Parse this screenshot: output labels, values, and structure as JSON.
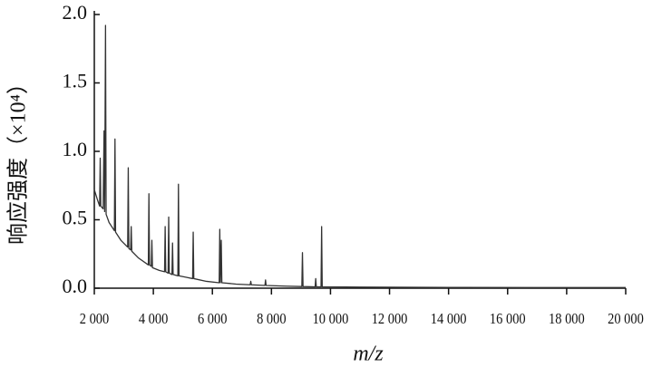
{
  "chart_data": {
    "type": "line",
    "xlabel": "m/z",
    "ylabel": "响应强度（×10⁴）",
    "color": "#333333",
    "x": [
      2000,
      2100,
      2180,
      2200,
      2220,
      2300,
      2330,
      2350,
      2380,
      2400,
      2500,
      2680,
      2700,
      2720,
      2900,
      3130,
      3150,
      3170,
      3230,
      3250,
      3270,
      3500,
      3830,
      3850,
      3870,
      3930,
      3950,
      3970,
      4200,
      4380,
      4400,
      4420,
      4500,
      4520,
      4540,
      4630,
      4650,
      4670,
      4830,
      4850,
      4870,
      5100,
      5330,
      5350,
      5370,
      5800,
      6230,
      6250,
      6270,
      6300,
      6320,
      6800,
      7280,
      7300,
      7320,
      7780,
      7800,
      7820,
      8500,
      9030,
      9050,
      9070,
      9480,
      9500,
      9520,
      9680,
      9700,
      9720,
      11000,
      14000,
      17000,
      20000
    ],
    "values": [
      0.72,
      0.65,
      0.6,
      0.95,
      0.6,
      0.58,
      1.15,
      0.56,
      1.92,
      0.54,
      0.48,
      0.42,
      1.09,
      0.41,
      0.35,
      0.3,
      0.88,
      0.29,
      0.28,
      0.45,
      0.27,
      0.22,
      0.17,
      0.69,
      0.17,
      0.16,
      0.35,
      0.15,
      0.13,
      0.12,
      0.45,
      0.12,
      0.11,
      0.52,
      0.11,
      0.1,
      0.33,
      0.1,
      0.09,
      0.76,
      0.09,
      0.08,
      0.07,
      0.41,
      0.07,
      0.05,
      0.04,
      0.43,
      0.04,
      0.35,
      0.04,
      0.03,
      0.025,
      0.05,
      0.025,
      0.02,
      0.06,
      0.02,
      0.015,
      0.012,
      0.26,
      0.012,
      0.01,
      0.07,
      0.01,
      0.01,
      0.45,
      0.01,
      0.008,
      0.006,
      0.005,
      0.005
    ],
    "xlim": [
      2000,
      20000
    ],
    "xticks": [
      {
        "value": 2000,
        "label": "2 000"
      },
      {
        "value": 4000,
        "label": "4 000"
      },
      {
        "value": 6000,
        "label": "6 000"
      },
      {
        "value": 8000,
        "label": "8 000"
      },
      {
        "value": 10000,
        "label": "10 000"
      },
      {
        "value": 12000,
        "label": "12 000"
      },
      {
        "value": 14000,
        "label": "14 000"
      },
      {
        "value": 16000,
        "label": "16 000"
      },
      {
        "value": 18000,
        "label": "18 000"
      },
      {
        "value": 20000,
        "label": "20 000"
      }
    ],
    "ylim": [
      0,
      2.0
    ],
    "yticks": [
      {
        "value": 0,
        "label": "0.0"
      },
      0.5,
      {
        "value": 1,
        "label": "1.0"
      },
      1.5,
      {
        "value": 2,
        "label": "2.0"
      }
    ]
  }
}
